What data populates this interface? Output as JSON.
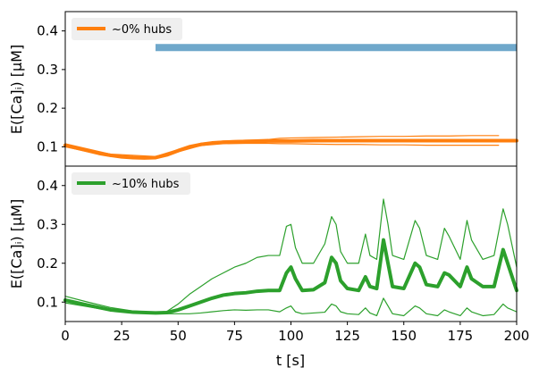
{
  "chart_data": [
    {
      "type": "line",
      "panel": "top",
      "ylabel": "E([Ca]ᵢ) [μM]",
      "xlim": [
        0,
        200
      ],
      "ylim": [
        0.05,
        0.45
      ],
      "yticks": [
        0.1,
        0.2,
        0.3,
        0.4
      ],
      "ytick_labels": [
        "0.1",
        "0.2",
        "0.3",
        "0.4"
      ],
      "legend": {
        "label": "~0% hubs",
        "color": "#ff7f0e",
        "placement": "top-left"
      },
      "stimulus_bar": {
        "x_start": 40,
        "x_end": 200,
        "y": 0.357,
        "color": "#6fa8cb"
      },
      "series": [
        {
          "role": "mean",
          "color": "#ff7f0e",
          "x": [
            0,
            5,
            10,
            15,
            20,
            25,
            30,
            35,
            40,
            45,
            50,
            55,
            60,
            65,
            70,
            75,
            80,
            85,
            90,
            95,
            100,
            110,
            120,
            130,
            140,
            150,
            160,
            170,
            180,
            190,
            200
          ],
          "y": [
            0.104,
            0.097,
            0.09,
            0.083,
            0.078,
            0.074,
            0.072,
            0.071,
            0.072,
            0.079,
            0.09,
            0.1,
            0.106,
            0.11,
            0.112,
            0.113,
            0.114,
            0.114,
            0.115,
            0.115,
            0.115,
            0.116,
            0.116,
            0.116,
            0.116,
            0.116,
            0.116,
            0.116,
            0.116,
            0.116,
            0.116
          ]
        },
        {
          "role": "upper",
          "color": "#ff7f0e",
          "x": [
            0,
            20,
            40,
            50,
            60,
            70,
            80,
            90,
            95,
            100,
            110,
            120,
            130,
            140,
            150,
            160,
            170,
            180,
            192
          ],
          "y": [
            0.108,
            0.081,
            0.075,
            0.093,
            0.109,
            0.115,
            0.117,
            0.119,
            0.122,
            0.123,
            0.124,
            0.125,
            0.126,
            0.127,
            0.127,
            0.128,
            0.128,
            0.129,
            0.129
          ]
        },
        {
          "role": "lower",
          "color": "#ff7f0e",
          "x": [
            0,
            20,
            40,
            50,
            60,
            70,
            80,
            90,
            95,
            100,
            110,
            120,
            130,
            140,
            150,
            160,
            170,
            180,
            192
          ],
          "y": [
            0.1,
            0.075,
            0.069,
            0.087,
            0.103,
            0.108,
            0.109,
            0.109,
            0.108,
            0.108,
            0.107,
            0.106,
            0.106,
            0.105,
            0.105,
            0.104,
            0.104,
            0.104,
            0.104
          ]
        }
      ]
    },
    {
      "type": "line",
      "panel": "bottom",
      "ylabel": "E([Ca]ᵢ) [μM]",
      "xlabel": "t [s]",
      "xlim": [
        0,
        200
      ],
      "ylim": [
        0.05,
        0.45
      ],
      "xticks": [
        0,
        25,
        50,
        75,
        100,
        125,
        150,
        175,
        200
      ],
      "xtick_labels": [
        "0",
        "25",
        "50",
        "75",
        "100",
        "125",
        "150",
        "175",
        "200"
      ],
      "yticks": [
        0.1,
        0.2,
        0.3,
        0.4
      ],
      "ytick_labels": [
        "0.1",
        "0.2",
        "0.3",
        "0.4"
      ],
      "legend": {
        "label": "~10% hubs",
        "color": "#2ca02c",
        "placement": "top-left"
      },
      "series": [
        {
          "role": "mean",
          "color": "#2ca02c",
          "x": [
            0,
            10,
            20,
            30,
            40,
            45,
            50,
            55,
            60,
            65,
            70,
            75,
            80,
            85,
            90,
            95,
            98,
            100,
            102,
            105,
            110,
            115,
            118,
            120,
            122,
            125,
            130,
            133,
            135,
            138,
            141,
            143,
            145,
            150,
            155,
            157,
            160,
            165,
            168,
            170,
            175,
            178,
            180,
            185,
            190,
            194,
            196,
            200
          ],
          "y": [
            0.105,
            0.092,
            0.08,
            0.074,
            0.072,
            0.073,
            0.08,
            0.09,
            0.1,
            0.11,
            0.118,
            0.122,
            0.124,
            0.128,
            0.13,
            0.13,
            0.175,
            0.19,
            0.16,
            0.13,
            0.132,
            0.15,
            0.215,
            0.2,
            0.155,
            0.135,
            0.13,
            0.165,
            0.14,
            0.135,
            0.26,
            0.2,
            0.14,
            0.135,
            0.2,
            0.19,
            0.145,
            0.14,
            0.175,
            0.17,
            0.14,
            0.19,
            0.16,
            0.14,
            0.14,
            0.235,
            0.2,
            0.13
          ]
        },
        {
          "role": "upper",
          "color": "#2ca02c",
          "x": [
            0,
            10,
            20,
            30,
            40,
            45,
            50,
            55,
            60,
            65,
            70,
            75,
            80,
            85,
            90,
            95,
            98,
            100,
            102,
            105,
            110,
            115,
            118,
            120,
            122,
            125,
            130,
            133,
            135,
            138,
            141,
            143,
            145,
            150,
            155,
            157,
            160,
            165,
            168,
            170,
            175,
            178,
            180,
            185,
            190,
            194,
            196,
            200
          ],
          "y": [
            0.115,
            0.1,
            0.086,
            0.077,
            0.074,
            0.076,
            0.095,
            0.12,
            0.14,
            0.16,
            0.175,
            0.19,
            0.2,
            0.215,
            0.22,
            0.22,
            0.295,
            0.3,
            0.24,
            0.2,
            0.2,
            0.25,
            0.32,
            0.3,
            0.23,
            0.2,
            0.2,
            0.275,
            0.22,
            0.21,
            0.365,
            0.3,
            0.22,
            0.21,
            0.31,
            0.29,
            0.22,
            0.21,
            0.29,
            0.27,
            0.21,
            0.31,
            0.26,
            0.21,
            0.22,
            0.34,
            0.3,
            0.19
          ]
        },
        {
          "role": "lower",
          "color": "#2ca02c",
          "x": [
            0,
            10,
            20,
            30,
            40,
            45,
            50,
            55,
            60,
            65,
            70,
            75,
            80,
            85,
            90,
            95,
            98,
            100,
            102,
            105,
            110,
            115,
            118,
            120,
            122,
            125,
            130,
            133,
            135,
            138,
            141,
            143,
            145,
            150,
            155,
            157,
            160,
            165,
            168,
            170,
            175,
            178,
            180,
            185,
            190,
            194,
            196,
            200
          ],
          "y": [
            0.098,
            0.088,
            0.078,
            0.072,
            0.07,
            0.07,
            0.07,
            0.07,
            0.072,
            0.075,
            0.078,
            0.08,
            0.079,
            0.08,
            0.08,
            0.075,
            0.085,
            0.09,
            0.075,
            0.07,
            0.072,
            0.074,
            0.095,
            0.09,
            0.075,
            0.07,
            0.068,
            0.085,
            0.072,
            0.065,
            0.11,
            0.09,
            0.07,
            0.065,
            0.09,
            0.085,
            0.07,
            0.065,
            0.08,
            0.075,
            0.065,
            0.085,
            0.075,
            0.065,
            0.068,
            0.095,
            0.085,
            0.075
          ]
        }
      ]
    }
  ]
}
